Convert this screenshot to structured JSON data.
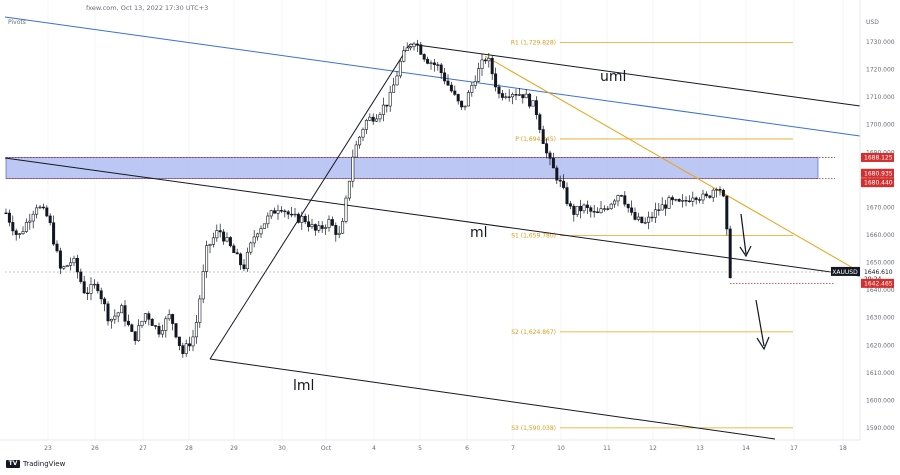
{
  "header": {
    "source": "fxew.com, Oct 13, 2022 17:30 UTC+3",
    "indicator": "Pivots"
  },
  "branding": {
    "logo_text": "TradingView",
    "logo_icon": "tradingview-logo-icon"
  },
  "chart_data": {
    "type": "candlestick",
    "symbol": "XAUUSD",
    "currency_label": "USD",
    "ylim": [
      1584,
      1737
    ],
    "y_ticks": [
      1590,
      1600,
      1610,
      1620,
      1630,
      1640,
      1650,
      1660,
      1670,
      1680,
      1690,
      1700,
      1710,
      1720,
      1730
    ],
    "y_tick_labels": [
      "1590.000",
      "1600.000",
      "1610.000",
      "1620.000",
      "1630.000",
      "1640.000",
      "1650.000",
      "1660.000",
      "1670.000",
      "1680.000",
      "1690.000",
      "1700.000",
      "1710.000",
      "1720.000",
      "1730.000"
    ],
    "xlim": [
      22.5,
      18.8
    ],
    "x_ticks": [
      "23",
      "26",
      "27",
      "28",
      "29",
      "30",
      "Oct",
      "4",
      "5",
      "6",
      "7",
      "10",
      "11",
      "12",
      "13",
      "14",
      "17",
      "18"
    ],
    "path": [
      [
        0,
        1668
      ],
      [
        2,
        1659
      ],
      [
        5,
        1671
      ],
      [
        7,
        1666
      ],
      [
        9,
        1647
      ],
      [
        11,
        1651
      ],
      [
        13,
        1639
      ],
      [
        15,
        1642
      ],
      [
        17,
        1629
      ],
      [
        19,
        1633
      ],
      [
        21,
        1622
      ],
      [
        23,
        1632
      ],
      [
        25,
        1625
      ],
      [
        27,
        1631
      ],
      [
        29,
        1617
      ],
      [
        31,
        1624
      ],
      [
        33,
        1655
      ],
      [
        35,
        1662
      ],
      [
        37,
        1655
      ],
      [
        39,
        1648
      ],
      [
        41,
        1661
      ],
      [
        43,
        1666
      ],
      [
        45,
        1671
      ],
      [
        47,
        1666
      ],
      [
        49,
        1666
      ],
      [
        51,
        1661
      ],
      [
        53,
        1665
      ],
      [
        55,
        1659
      ],
      [
        57,
        1689
      ],
      [
        59,
        1701
      ],
      [
        61,
        1704
      ],
      [
        63,
        1709
      ],
      [
        65,
        1724
      ],
      [
        67,
        1731
      ],
      [
        69,
        1724
      ],
      [
        71,
        1721
      ],
      [
        73,
        1713
      ],
      [
        75,
        1705
      ],
      [
        77,
        1717
      ],
      [
        79,
        1725
      ],
      [
        81,
        1711
      ],
      [
        83,
        1712
      ],
      [
        85,
        1711
      ],
      [
        87,
        1706
      ],
      [
        89,
        1688
      ],
      [
        91,
        1679
      ],
      [
        93,
        1668
      ],
      [
        95,
        1670
      ],
      [
        97,
        1667
      ],
      [
        99,
        1671
      ],
      [
        101,
        1676
      ],
      [
        103,
        1666
      ],
      [
        105,
        1664
      ],
      [
        107,
        1669
      ],
      [
        109,
        1672
      ],
      [
        111,
        1671
      ],
      [
        113,
        1675
      ],
      [
        115,
        1673
      ],
      [
        117,
        1679
      ],
      [
        118,
        1672
      ],
      [
        119,
        1646
      ]
    ],
    "levels": {
      "R1": {
        "label": "R1 (1,729.828)",
        "value": 1729.828
      },
      "P": {
        "label": "P (1,694.845)",
        "value": 1694.845
      },
      "S1": {
        "label": "S1 (1,659.780)",
        "value": 1659.78
      },
      "S2": {
        "label": "S2 (1,624.867)",
        "value": 1624.867
      },
      "S3": {
        "label": "S3 (1,590.038)",
        "value": 1590.038
      }
    },
    "zone": {
      "top": 1688.125,
      "bottom": 1680.44
    },
    "price_tags": [
      {
        "text": "1688.125",
        "value": 1688.125,
        "style": "red"
      },
      {
        "text": "1680.935",
        "value": 1680.935,
        "style": "red"
      },
      {
        "text": "1680.440",
        "value": 1680.44,
        "style": "red"
      },
      {
        "text": "1646.610",
        "value": 1646.61,
        "style": "dark",
        "symbol": "XAUUSD",
        "countdown": "29:24"
      },
      {
        "text": "1642.465",
        "value": 1642.465,
        "style": "red"
      }
    ],
    "channel_labels": [
      "uml",
      "ml",
      "lml"
    ],
    "current_price": 1646.61,
    "support_price": 1642.465
  }
}
